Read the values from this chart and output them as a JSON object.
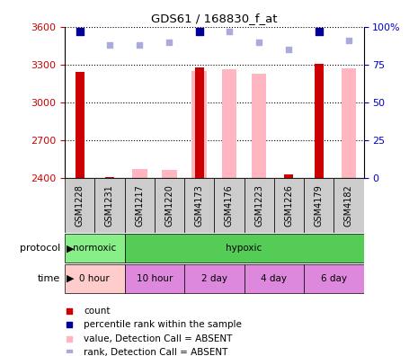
{
  "title": "GDS61 / 168830_f_at",
  "samples": [
    "GSM1228",
    "GSM1231",
    "GSM1217",
    "GSM1220",
    "GSM4173",
    "GSM4176",
    "GSM1223",
    "GSM1226",
    "GSM4179",
    "GSM4182"
  ],
  "count_values": [
    3240,
    2405,
    null,
    null,
    3280,
    null,
    null,
    2430,
    3305,
    null
  ],
  "value_absent": [
    null,
    null,
    2470,
    2465,
    3250,
    3260,
    3230,
    null,
    null,
    3270
  ],
  "rank_present": [
    97,
    null,
    null,
    null,
    97,
    null,
    null,
    null,
    97,
    null
  ],
  "rank_absent": [
    null,
    88,
    88,
    90,
    null,
    97,
    90,
    85,
    null,
    91
  ],
  "ylim_left": [
    2400,
    3600
  ],
  "ylim_right": [
    0,
    100
  ],
  "yticks_left": [
    2400,
    2700,
    3000,
    3300,
    3600
  ],
  "yticks_right": [
    0,
    25,
    50,
    75,
    100
  ],
  "color_count": "#CC0000",
  "color_value_absent": "#FFB6C1",
  "color_rank_present": "#000099",
  "color_rank_absent": "#AAAADD",
  "bar_width": 0.5,
  "left_tick_color": "#CC0000",
  "right_tick_color": "#0000CC",
  "normoxic_color": "#88EE88",
  "hypoxic_color": "#55CC55",
  "time_color_0hour": "#FFCCCC",
  "time_color_other": "#DD88DD",
  "sample_bg": "#CCCCCC",
  "legend_items": [
    {
      "color": "#CC0000",
      "marker": "s",
      "label": "count"
    },
    {
      "color": "#000099",
      "marker": "s",
      "label": "percentile rank within the sample"
    },
    {
      "color": "#FFB6C1",
      "marker": "s",
      "label": "value, Detection Call = ABSENT"
    },
    {
      "color": "#AAAADD",
      "marker": "s",
      "label": "rank, Detection Call = ABSENT"
    }
  ]
}
